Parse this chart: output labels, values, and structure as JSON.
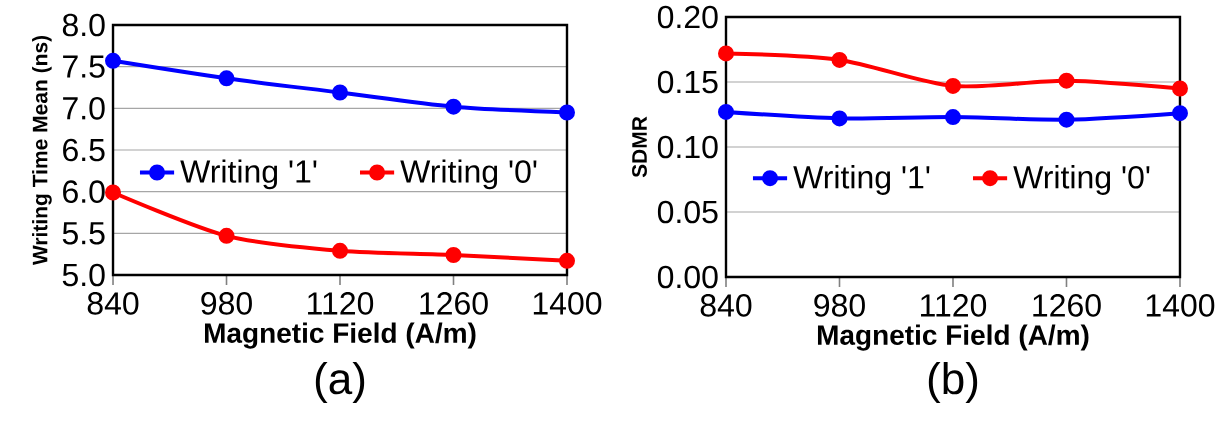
{
  "chart_data": [
    {
      "type": "line",
      "xlabel": "Magnetic Field (A/m)",
      "ylabel": "Writing Time Mean (ns)",
      "annotations": [
        "(a)"
      ],
      "x": [
        840,
        980,
        1120,
        1260,
        1400
      ],
      "xlim": [
        840,
        1400
      ],
      "xticks": [
        840,
        980,
        1120,
        1260,
        1400
      ],
      "ylim": [
        5.0,
        8.0
      ],
      "yticks": [
        {
          "value": 5.0,
          "label": "5.0"
        },
        {
          "value": 5.5,
          "label": "5.5"
        },
        {
          "value": 6.0,
          "label": "6.0"
        },
        {
          "value": 6.5,
          "label": "6.5"
        },
        {
          "value": 7.0,
          "label": "7.0"
        },
        {
          "value": 7.5,
          "label": "7.5"
        },
        {
          "value": 8.0,
          "label": "8.0"
        }
      ],
      "grid": "y",
      "legend": "center",
      "marker": "circle",
      "line_style": "solid",
      "series": [
        {
          "name": "Writing '1'",
          "color": "#0000ff",
          "values": [
            7.57,
            7.36,
            7.19,
            7.02,
            6.95
          ]
        },
        {
          "name": "Writing '0'",
          "color": "#ff0000",
          "values": [
            5.99,
            5.47,
            5.29,
            5.24,
            5.17
          ]
        }
      ]
    },
    {
      "type": "line",
      "xlabel": "Magnetic Field (A/m)",
      "ylabel": "SDMR",
      "annotations": [
        "(b)"
      ],
      "x": [
        840,
        980,
        1120,
        1260,
        1400
      ],
      "xlim": [
        840,
        1400
      ],
      "xticks": [
        840,
        980,
        1120,
        1260,
        1400
      ],
      "ylim": [
        0.0,
        0.2
      ],
      "yticks": [
        {
          "value": 0.0,
          "label": "0.00"
        },
        {
          "value": 0.05,
          "label": "0.05"
        },
        {
          "value": 0.1,
          "label": "0.10"
        },
        {
          "value": 0.15,
          "label": "0.15"
        },
        {
          "value": 0.2,
          "label": "0.20"
        }
      ],
      "grid": "y",
      "legend": "center",
      "marker": "circle",
      "line_style": "solid",
      "series": [
        {
          "name": "Writing '1'",
          "color": "#0000ff",
          "values": [
            0.127,
            0.122,
            0.123,
            0.121,
            0.126
          ]
        },
        {
          "name": "Writing '0'",
          "color": "#ff0000",
          "values": [
            0.172,
            0.167,
            0.147,
            0.151,
            0.145
          ]
        }
      ]
    }
  ]
}
